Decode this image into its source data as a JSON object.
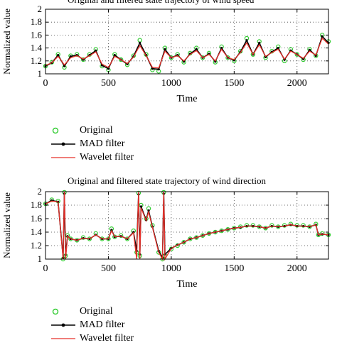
{
  "chart_data": [
    {
      "type": "line",
      "title": "Original and filtered state trajectory of wind speed",
      "xlabel": "Time",
      "ylabel": "Normalized value",
      "xlim": [
        0,
        2250
      ],
      "ylim": [
        1,
        2
      ],
      "xticks": [
        "0",
        "500",
        "1000",
        "1500",
        "2000"
      ],
      "yticks": [
        "1",
        "1.2",
        "1.4",
        "1.6",
        "1.8",
        "2"
      ],
      "grid": true,
      "legend_position": "below",
      "x": [
        0,
        50,
        100,
        150,
        200,
        250,
        300,
        350,
        400,
        450,
        500,
        550,
        600,
        650,
        700,
        750,
        800,
        850,
        900,
        950,
        1000,
        1050,
        1100,
        1150,
        1200,
        1250,
        1300,
        1350,
        1400,
        1450,
        1500,
        1550,
        1600,
        1650,
        1700,
        1750,
        1800,
        1850,
        1900,
        1950,
        2000,
        2050,
        2100,
        2150,
        2200,
        2250
      ],
      "series": [
        {
          "name": "Original",
          "color": "#33cc33",
          "marker": "circle-open",
          "values": [
            1.12,
            1.18,
            1.3,
            1.1,
            1.28,
            1.3,
            1.22,
            1.3,
            1.38,
            1.12,
            1.06,
            1.3,
            1.22,
            1.14,
            1.28,
            1.52,
            1.3,
            1.06,
            1.04,
            1.4,
            1.25,
            1.3,
            1.18,
            1.32,
            1.4,
            1.25,
            1.32,
            1.18,
            1.42,
            1.25,
            1.2,
            1.35,
            1.55,
            1.3,
            1.5,
            1.25,
            1.35,
            1.42,
            1.2,
            1.38,
            1.3,
            1.22,
            1.38,
            1.28,
            1.6,
            1.5
          ]
        },
        {
          "name": "MAD filter",
          "color": "#000000",
          "marker": "dot-line",
          "values": [
            1.12,
            1.17,
            1.29,
            1.12,
            1.27,
            1.29,
            1.22,
            1.29,
            1.36,
            1.13,
            1.08,
            1.29,
            1.22,
            1.15,
            1.27,
            1.48,
            1.29,
            1.08,
            1.07,
            1.38,
            1.25,
            1.29,
            1.19,
            1.31,
            1.38,
            1.25,
            1.31,
            1.19,
            1.4,
            1.25,
            1.21,
            1.34,
            1.52,
            1.3,
            1.48,
            1.26,
            1.34,
            1.4,
            1.22,
            1.36,
            1.3,
            1.23,
            1.37,
            1.28,
            1.58,
            1.48
          ]
        },
        {
          "name": "Wavelet filter",
          "color": "#e8312a",
          "marker": "line",
          "values": [
            1.13,
            1.17,
            1.27,
            1.14,
            1.25,
            1.28,
            1.23,
            1.28,
            1.34,
            1.15,
            1.1,
            1.27,
            1.22,
            1.16,
            1.26,
            1.44,
            1.28,
            1.1,
            1.09,
            1.35,
            1.25,
            1.28,
            1.2,
            1.3,
            1.36,
            1.25,
            1.3,
            1.2,
            1.38,
            1.25,
            1.22,
            1.33,
            1.48,
            1.3,
            1.45,
            1.27,
            1.33,
            1.38,
            1.23,
            1.35,
            1.3,
            1.24,
            1.35,
            1.29,
            1.55,
            1.46
          ]
        }
      ]
    },
    {
      "type": "line",
      "title": "Original and filtered state trajectory of wind direction",
      "xlabel": "Time",
      "ylabel": "Normalized value",
      "xlim": [
        0,
        2250
      ],
      "ylim": [
        1,
        2
      ],
      "xticks": [
        "0",
        "500",
        "1000",
        "1500",
        "2000"
      ],
      "yticks": [
        "1",
        "1.2",
        "1.4",
        "1.6",
        "1.8",
        "2"
      ],
      "grid": true,
      "legend_position": "below",
      "x": [
        0,
        50,
        100,
        140,
        150,
        160,
        175,
        200,
        250,
        300,
        350,
        400,
        450,
        500,
        525,
        550,
        600,
        650,
        700,
        725,
        740,
        750,
        760,
        800,
        820,
        850,
        900,
        930,
        940,
        950,
        1000,
        1050,
        1100,
        1150,
        1200,
        1250,
        1300,
        1350,
        1400,
        1450,
        1500,
        1550,
        1600,
        1650,
        1700,
        1750,
        1800,
        1850,
        1900,
        1950,
        2000,
        2050,
        2100,
        2150,
        2170,
        2200,
        2250
      ],
      "series": [
        {
          "name": "Original",
          "color": "#33cc33",
          "marker": "circle-open",
          "values": [
            1.82,
            1.88,
            1.86,
            1.0,
            1.99,
            1.05,
            1.35,
            1.3,
            1.28,
            1.32,
            1.3,
            1.38,
            1.3,
            1.3,
            1.45,
            1.33,
            1.35,
            1.3,
            1.42,
            1.1,
            1.98,
            1.05,
            1.8,
            1.6,
            1.75,
            1.5,
            1.1,
            1.0,
            1.99,
            1.05,
            1.15,
            1.2,
            1.25,
            1.3,
            1.32,
            1.35,
            1.38,
            1.4,
            1.42,
            1.44,
            1.46,
            1.48,
            1.5,
            1.5,
            1.48,
            1.46,
            1.5,
            1.48,
            1.5,
            1.52,
            1.5,
            1.5,
            1.48,
            1.52,
            1.36,
            1.38,
            1.36
          ]
        },
        {
          "name": "MAD filter",
          "color": "#000000",
          "marker": "dot-line",
          "values": [
            1.82,
            1.87,
            1.85,
            1.02,
            1.97,
            1.06,
            1.34,
            1.3,
            1.28,
            1.31,
            1.3,
            1.36,
            1.3,
            1.3,
            1.43,
            1.33,
            1.34,
            1.3,
            1.4,
            1.12,
            1.96,
            1.07,
            1.78,
            1.58,
            1.72,
            1.48,
            1.12,
            1.02,
            1.97,
            1.07,
            1.16,
            1.21,
            1.25,
            1.3,
            1.32,
            1.35,
            1.38,
            1.4,
            1.42,
            1.44,
            1.46,
            1.47,
            1.49,
            1.49,
            1.48,
            1.46,
            1.49,
            1.48,
            1.49,
            1.51,
            1.49,
            1.49,
            1.48,
            1.51,
            1.36,
            1.37,
            1.36
          ]
        },
        {
          "name": "Wavelet filter",
          "color": "#e8312a",
          "marker": "line",
          "values": [
            1.82,
            1.86,
            1.85,
            1.0,
            2.0,
            1.0,
            1.34,
            1.3,
            1.28,
            1.31,
            1.3,
            1.36,
            1.3,
            1.3,
            1.42,
            1.33,
            1.34,
            1.3,
            1.39,
            1.0,
            2.0,
            1.0,
            1.76,
            1.57,
            1.7,
            1.47,
            1.1,
            1.0,
            2.0,
            1.0,
            1.16,
            1.21,
            1.25,
            1.3,
            1.32,
            1.35,
            1.38,
            1.4,
            1.42,
            1.44,
            1.46,
            1.47,
            1.49,
            1.49,
            1.48,
            1.46,
            1.49,
            1.48,
            1.49,
            1.51,
            1.49,
            1.49,
            1.48,
            1.51,
            1.36,
            1.37,
            1.36
          ]
        }
      ]
    }
  ],
  "legends": [
    {
      "items": [
        {
          "label": "Original"
        },
        {
          "label": "MAD filter"
        },
        {
          "label": "Wavelet filter"
        }
      ]
    },
    {
      "items": [
        {
          "label": "Original"
        },
        {
          "label": "MAD filter"
        },
        {
          "label": "Wavelet filter"
        }
      ]
    }
  ]
}
